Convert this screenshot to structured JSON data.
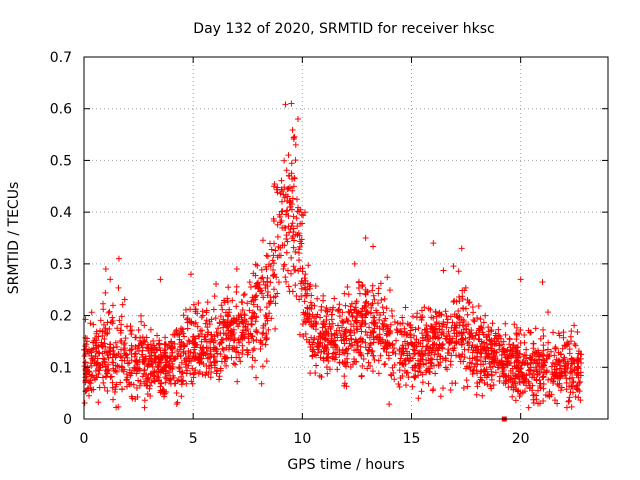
{
  "chart_data": {
    "type": "scatter",
    "title": "Day 132 of 2020, SRMTID for receiver hksc",
    "xlabel": "GPS time / hours",
    "ylabel": "SRMTID / TECUs",
    "xlim": [
      0,
      24
    ],
    "ylim": [
      0,
      0.7
    ],
    "xticks": [
      0,
      5,
      10,
      15,
      20
    ],
    "yticks": [
      0,
      0.1,
      0.2,
      0.3,
      0.4,
      0.5,
      0.6,
      0.7
    ],
    "xtick_labels": [
      "0",
      "5",
      "10",
      "15",
      "20"
    ],
    "ytick_labels": [
      "0",
      "0.1",
      "0.2",
      "0.3",
      "0.4",
      "0.5",
      "0.6",
      "0.7"
    ],
    "grid": true,
    "marker": "+",
    "color": "#ff0000",
    "data_range_hours": [
      0,
      22.8
    ],
    "outlier_marker": {
      "x": 19.25,
      "y": 0.0
    },
    "envelope": [
      {
        "x": 0.0,
        "median": 0.1,
        "spread": 0.045
      },
      {
        "x": 1.0,
        "median": 0.13,
        "spread": 0.06
      },
      {
        "x": 1.5,
        "median": 0.14,
        "spread": 0.07
      },
      {
        "x": 2.0,
        "median": 0.12,
        "spread": 0.05
      },
      {
        "x": 3.5,
        "median": 0.1,
        "spread": 0.04
      },
      {
        "x": 5.0,
        "median": 0.14,
        "spread": 0.05
      },
      {
        "x": 6.5,
        "median": 0.16,
        "spread": 0.05
      },
      {
        "x": 7.5,
        "median": 0.17,
        "spread": 0.05
      },
      {
        "x": 8.2,
        "median": 0.22,
        "spread": 0.07
      },
      {
        "x": 8.8,
        "median": 0.3,
        "spread": 0.08
      },
      {
        "x": 9.3,
        "median": 0.4,
        "spread": 0.09
      },
      {
        "x": 9.6,
        "median": 0.43,
        "spread": 0.11
      },
      {
        "x": 10.0,
        "median": 0.28,
        "spread": 0.07
      },
      {
        "x": 10.5,
        "median": 0.16,
        "spread": 0.05
      },
      {
        "x": 12.0,
        "median": 0.15,
        "spread": 0.05
      },
      {
        "x": 13.0,
        "median": 0.19,
        "spread": 0.06
      },
      {
        "x": 14.5,
        "median": 0.13,
        "spread": 0.05
      },
      {
        "x": 16.0,
        "median": 0.14,
        "spread": 0.05
      },
      {
        "x": 17.2,
        "median": 0.17,
        "spread": 0.06
      },
      {
        "x": 18.5,
        "median": 0.12,
        "spread": 0.04
      },
      {
        "x": 20.5,
        "median": 0.1,
        "spread": 0.045
      },
      {
        "x": 22.8,
        "median": 0.09,
        "spread": 0.045
      }
    ],
    "spikes": [
      {
        "x": 1.0,
        "y": 0.29
      },
      {
        "x": 1.2,
        "y": 0.27
      },
      {
        "x": 1.6,
        "y": 0.31
      },
      {
        "x": 3.5,
        "y": 0.27
      },
      {
        "x": 4.9,
        "y": 0.28
      },
      {
        "x": 7.0,
        "y": 0.29
      },
      {
        "x": 9.5,
        "y": 0.61
      },
      {
        "x": 9.8,
        "y": 0.58
      },
      {
        "x": 9.7,
        "y": 0.53
      },
      {
        "x": 9.4,
        "y": 0.47
      },
      {
        "x": 8.7,
        "y": 0.45
      },
      {
        "x": 12.4,
        "y": 0.3
      },
      {
        "x": 12.9,
        "y": 0.35
      },
      {
        "x": 16.0,
        "y": 0.34
      },
      {
        "x": 17.3,
        "y": 0.33
      },
      {
        "x": 20.0,
        "y": 0.27
      },
      {
        "x": 21.0,
        "y": 0.265
      }
    ]
  }
}
